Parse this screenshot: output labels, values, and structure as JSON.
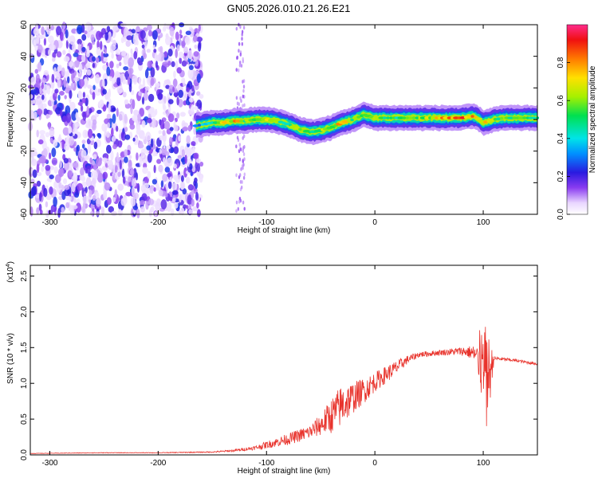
{
  "title": "GN05.2026.010.21.26.E21",
  "chart_data": [
    {
      "type": "heatmap",
      "xlabel": "Height of straight line (km)",
      "ylabel": "Frequency (Hz)",
      "xlim": [
        -318,
        150
      ],
      "ylim": [
        -60,
        60
      ],
      "x_ticks": [
        -300,
        -200,
        -100,
        0,
        100
      ],
      "y_ticks": [
        -60,
        -40,
        -20,
        0,
        20,
        40,
        60
      ],
      "grid": false,
      "colorbar": {
        "label": "Normalized spectral amplitude",
        "range": [
          0,
          1
        ],
        "ticks": [
          0.0,
          0.2,
          0.4,
          0.6,
          0.8
        ]
      },
      "ridge": {
        "x": [
          -165,
          -150,
          -140,
          -130,
          -120,
          -110,
          -100,
          -90,
          -80,
          -70,
          -60,
          -50,
          -40,
          -30,
          -20,
          -10,
          0,
          20,
          40,
          60,
          80,
          90,
          95,
          100,
          110,
          120,
          150
        ],
        "frequency": [
          -4,
          -2,
          -2,
          -1,
          -1,
          0,
          0,
          -1,
          -3,
          -6,
          -8,
          -7,
          -5,
          -2,
          0,
          3,
          1,
          1,
          1,
          1,
          1,
          2,
          1,
          -2,
          0,
          1,
          1
        ],
        "amplitude": [
          0.3,
          0.5,
          0.7,
          0.8,
          0.6,
          0.6,
          0.7,
          0.6,
          0.5,
          0.7,
          0.6,
          0.6,
          0.7,
          0.8,
          0.6,
          0.7,
          0.6,
          0.5,
          0.6,
          0.8,
          0.9,
          0.8,
          0.7,
          0.9,
          0.6,
          0.6,
          0.5
        ]
      },
      "noise_region_x": [
        -318,
        -160
      ]
    },
    {
      "type": "line",
      "xlabel": "Height of straight line (km)",
      "ylabel": "SNR (10 * v/v)",
      "y_scale_label": "(x10",
      "y_scale_exponent": "4",
      "xlim": [
        -318,
        150
      ],
      "ylim": [
        0,
        2.65
      ],
      "x_ticks": [
        -300,
        -200,
        -100,
        0,
        100
      ],
      "y_ticks": [
        0.0,
        0.5,
        1.0,
        1.5,
        2.0,
        2.5
      ],
      "grid": false,
      "series": [
        {
          "color": "#e8332c",
          "x": [
            -318,
            -250,
            -200,
            -150,
            -130,
            -110,
            -100,
            -80,
            -60,
            -50,
            -40,
            -30,
            -20,
            -10,
            0,
            10,
            20,
            30,
            40,
            60,
            80,
            90,
            95,
            100,
            103,
            110,
            130,
            150
          ],
          "y": [
            0.02,
            0.03,
            0.03,
            0.04,
            0.06,
            0.1,
            0.14,
            0.22,
            0.32,
            0.42,
            0.55,
            0.7,
            0.8,
            0.9,
            1.02,
            1.12,
            1.22,
            1.33,
            1.4,
            1.43,
            1.45,
            1.43,
            1.35,
            1.2,
            1.0,
            1.35,
            1.32,
            1.27
          ],
          "jitter": [
            0.003,
            0.004,
            0.004,
            0.008,
            0.015,
            0.03,
            0.05,
            0.08,
            0.1,
            0.15,
            0.25,
            0.3,
            0.22,
            0.18,
            0.14,
            0.12,
            0.1,
            0.06,
            0.04,
            0.04,
            0.06,
            0.1,
            0.2,
            0.6,
            0.8,
            0.03,
            0.02,
            0.02
          ]
        }
      ]
    }
  ]
}
